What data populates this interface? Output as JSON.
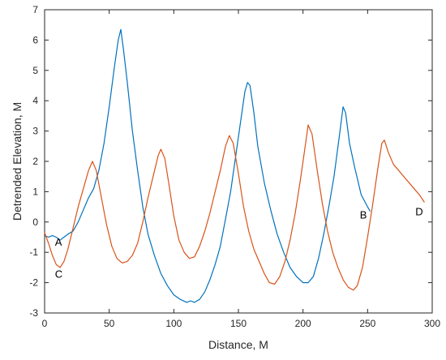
{
  "chart_data": {
    "type": "line",
    "title": "",
    "xlabel": "Distance, M",
    "ylabel": "Detrended Elevation, M",
    "xlim": [
      0,
      300
    ],
    "ylim": [
      -3,
      7
    ],
    "xticks": [
      0,
      50,
      100,
      150,
      200,
      250,
      300
    ],
    "yticks": [
      -3,
      -2,
      -1,
      0,
      1,
      2,
      3,
      4,
      5,
      6,
      7
    ],
    "grid": false,
    "legend": "none",
    "series": [
      {
        "color": "#0072BD",
        "x": [
          0,
          3,
          6,
          9,
          12,
          15,
          18,
          22,
          26,
          30,
          34,
          38,
          42,
          46,
          50,
          54,
          57,
          59,
          61,
          64,
          68,
          72,
          76,
          80,
          85,
          90,
          95,
          100,
          105,
          110,
          113,
          116,
          120,
          124,
          128,
          132,
          136,
          140,
          144,
          148,
          152,
          155,
          157,
          159,
          162,
          165,
          170,
          175,
          180,
          185,
          190,
          195,
          200,
          204,
          208,
          212,
          216,
          220,
          224,
          228,
          231,
          233,
          236,
          240,
          245,
          250,
          252
        ],
        "y": [
          -0.45,
          -0.5,
          -0.45,
          -0.5,
          -0.6,
          -0.5,
          -0.4,
          -0.3,
          0.0,
          0.4,
          0.8,
          1.1,
          1.7,
          2.6,
          3.8,
          5.1,
          6.0,
          6.35,
          5.7,
          4.6,
          3.0,
          1.7,
          0.5,
          -0.4,
          -1.1,
          -1.7,
          -2.1,
          -2.4,
          -2.55,
          -2.65,
          -2.6,
          -2.65,
          -2.55,
          -2.3,
          -1.9,
          -1.4,
          -0.8,
          0.1,
          1.0,
          2.2,
          3.4,
          4.3,
          4.6,
          4.5,
          3.6,
          2.5,
          1.3,
          0.4,
          -0.4,
          -1.0,
          -1.5,
          -1.8,
          -2.0,
          -2.0,
          -1.8,
          -1.2,
          -0.4,
          0.5,
          1.5,
          2.8,
          3.8,
          3.6,
          2.6,
          1.8,
          0.9,
          0.5,
          0.35
        ]
      },
      {
        "color": "#D95319",
        "x": [
          0,
          3,
          6,
          9,
          12,
          15,
          18,
          22,
          26,
          30,
          34,
          37,
          40,
          44,
          48,
          52,
          56,
          60,
          64,
          68,
          72,
          76,
          80,
          84,
          88,
          90,
          93,
          96,
          100,
          104,
          108,
          112,
          116,
          120,
          124,
          128,
          132,
          136,
          140,
          143,
          146,
          150,
          154,
          158,
          162,
          166,
          170,
          174,
          178,
          182,
          186,
          190,
          194,
          198,
          202,
          204,
          207,
          211,
          215,
          219,
          223,
          227,
          231,
          235,
          239,
          242,
          246,
          250,
          254,
          258,
          261,
          263,
          266,
          270,
          274,
          278,
          282,
          286,
          290,
          294
        ],
        "y": [
          -0.35,
          -0.7,
          -1.1,
          -1.4,
          -1.5,
          -1.3,
          -0.9,
          -0.2,
          0.5,
          1.1,
          1.7,
          2.0,
          1.7,
          0.8,
          -0.1,
          -0.8,
          -1.2,
          -1.35,
          -1.3,
          -1.1,
          -0.7,
          0.0,
          0.8,
          1.5,
          2.2,
          2.4,
          2.1,
          1.3,
          0.2,
          -0.6,
          -1.0,
          -1.2,
          -1.15,
          -0.8,
          -0.3,
          0.3,
          1.0,
          1.7,
          2.5,
          2.85,
          2.6,
          1.6,
          0.5,
          -0.3,
          -0.9,
          -1.3,
          -1.7,
          -2.0,
          -2.05,
          -1.8,
          -1.3,
          -0.6,
          0.3,
          1.4,
          2.6,
          3.2,
          2.9,
          1.7,
          0.6,
          -0.3,
          -1.0,
          -1.5,
          -1.9,
          -2.15,
          -2.25,
          -2.1,
          -1.5,
          -0.5,
          0.6,
          1.8,
          2.6,
          2.7,
          2.3,
          1.9,
          1.7,
          1.5,
          1.3,
          1.1,
          0.9,
          0.65
        ]
      }
    ],
    "annotations": [
      {
        "text": "A",
        "x": 8,
        "y": -0.65
      },
      {
        "text": "C",
        "x": 8,
        "y": -1.7
      },
      {
        "text": "B",
        "x": 244,
        "y": 0.25
      },
      {
        "text": "D",
        "x": 287,
        "y": 0.35
      }
    ]
  }
}
